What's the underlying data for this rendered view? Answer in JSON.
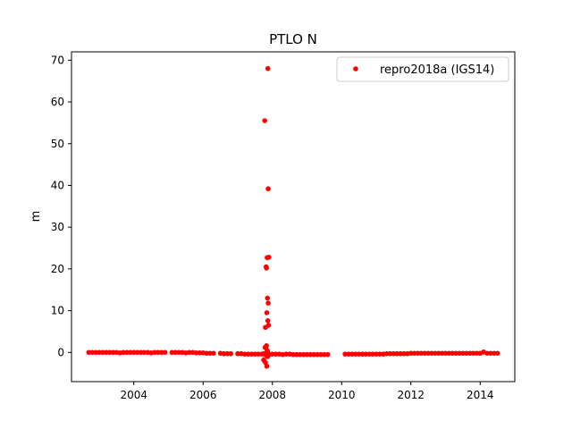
{
  "chart_data": {
    "type": "scatter",
    "title": "PTLO N",
    "xlabel": "",
    "ylabel": "m",
    "xlim": [
      2002.2,
      2015.0
    ],
    "ylim": [
      -7.0,
      72.0
    ],
    "x_ticks": [
      2004,
      2006,
      2008,
      2010,
      2012,
      2014
    ],
    "x_tick_labels": [
      "2004",
      "2006",
      "2008",
      "2010",
      "2012",
      "2014"
    ],
    "y_ticks": [
      0,
      10,
      20,
      30,
      40,
      50,
      60,
      70
    ],
    "y_tick_labels": [
      "0",
      "10",
      "20",
      "30",
      "40",
      "50",
      "60",
      "70"
    ],
    "grid": false,
    "legend_position": "top-right",
    "series": [
      {
        "name": "repro2018a (IGS14)",
        "color": "#ff0000",
        "marker": "dot",
        "x": [
          2002.7,
          2002.8,
          2002.9,
          2003.0,
          2003.1,
          2003.2,
          2003.3,
          2003.4,
          2003.5,
          2003.6,
          2003.7,
          2003.8,
          2003.9,
          2004.0,
          2004.1,
          2004.2,
          2004.3,
          2004.4,
          2004.5,
          2004.6,
          2004.7,
          2004.8,
          2004.9,
          2005.1,
          2005.2,
          2005.3,
          2005.4,
          2005.5,
          2005.6,
          2005.7,
          2005.8,
          2005.9,
          2006.0,
          2006.1,
          2006.2,
          2006.3,
          2006.5,
          2006.6,
          2006.7,
          2006.8,
          2007.0,
          2007.1,
          2007.2,
          2007.3,
          2007.4,
          2007.5,
          2007.6,
          2007.7,
          2007.75,
          2007.77,
          2007.8,
          2007.82,
          2007.85,
          2007.88,
          2007.9,
          2008.0,
          2008.1,
          2008.2,
          2008.3,
          2008.4,
          2008.5,
          2008.6,
          2008.7,
          2008.8,
          2008.9,
          2009.0,
          2009.1,
          2009.2,
          2009.3,
          2009.4,
          2009.5,
          2009.6,
          2010.1,
          2010.2,
          2010.3,
          2010.4,
          2010.5,
          2010.6,
          2010.7,
          2010.8,
          2010.9,
          2011.0,
          2011.1,
          2011.2,
          2011.3,
          2011.4,
          2011.5,
          2011.6,
          2011.7,
          2011.8,
          2011.9,
          2012.0,
          2012.1,
          2012.2,
          2012.3,
          2012.4,
          2012.5,
          2012.6,
          2012.7,
          2012.8,
          2012.9,
          2013.0,
          2013.1,
          2013.2,
          2013.3,
          2013.4,
          2013.5,
          2013.6,
          2013.7,
          2013.8,
          2013.9,
          2014.0,
          2014.1,
          2014.2,
          2014.3,
          2014.4,
          2014.5,
          2007.87,
          2007.78,
          2007.88,
          2007.9,
          2007.85,
          2007.82,
          2007.83,
          2007.86,
          2007.88,
          2007.84,
          2007.87,
          2007.89,
          2007.8,
          2007.83,
          2007.79,
          2007.85,
          2007.81,
          2007.86,
          2007.75,
          2007.8,
          2007.84,
          2007.88,
          2007.9,
          2007.86
        ],
        "y": [
          0.0,
          0.0,
          0.0,
          0.0,
          0.0,
          0.0,
          0.0,
          0.0,
          0.0,
          -0.1,
          0.0,
          0.0,
          0.0,
          0.0,
          0.0,
          0.0,
          0.0,
          0.0,
          -0.1,
          0.0,
          0.0,
          0.0,
          0.0,
          0.0,
          0.0,
          0.0,
          0.0,
          -0.1,
          0.0,
          0.0,
          -0.1,
          -0.1,
          -0.1,
          -0.2,
          -0.2,
          -0.2,
          -0.2,
          -0.3,
          -0.3,
          -0.3,
          -0.3,
          -0.3,
          -0.4,
          -0.4,
          -0.4,
          -0.4,
          -0.4,
          -0.4,
          -0.3,
          -0.4,
          -0.3,
          -0.4,
          -0.4,
          -0.5,
          -0.4,
          -0.4,
          -0.4,
          -0.4,
          -0.5,
          -0.4,
          -0.4,
          -0.5,
          -0.5,
          -0.5,
          -0.5,
          -0.5,
          -0.5,
          -0.5,
          -0.5,
          -0.5,
          -0.5,
          -0.5,
          -0.4,
          -0.4,
          -0.4,
          -0.4,
          -0.4,
          -0.4,
          -0.4,
          -0.4,
          -0.4,
          -0.4,
          -0.4,
          -0.4,
          -0.3,
          -0.3,
          -0.3,
          -0.3,
          -0.3,
          -0.3,
          -0.3,
          -0.2,
          -0.2,
          -0.2,
          -0.2,
          -0.2,
          -0.2,
          -0.2,
          -0.2,
          -0.2,
          -0.2,
          -0.2,
          -0.2,
          -0.2,
          -0.2,
          -0.2,
          -0.2,
          -0.2,
          -0.2,
          -0.2,
          -0.2,
          -0.2,
          0.1,
          -0.2,
          -0.2,
          -0.2,
          -0.2,
          68.0,
          55.5,
          39.2,
          22.8,
          22.7,
          20.5,
          20.2,
          13.0,
          11.8,
          9.5,
          7.6,
          6.5,
          6.0,
          1.6,
          1.2,
          0.5,
          -0.6,
          -1.0,
          -1.8,
          -2.4,
          -3.3,
          -0.8,
          -0.5,
          0.2
        ]
      }
    ]
  }
}
